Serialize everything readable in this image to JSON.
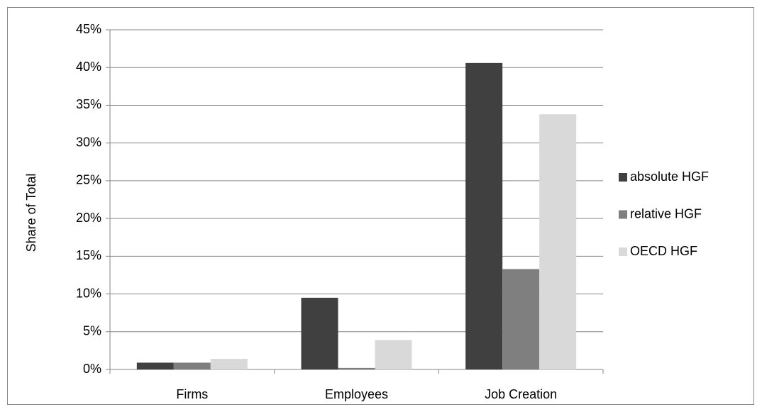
{
  "chart_data": {
    "type": "bar",
    "y_label": "Share of Total",
    "categories": [
      "Firms",
      "Employees",
      "Job Creation"
    ],
    "series": [
      {
        "name": "absolute HGF",
        "color": "#404040",
        "values": [
          0.9,
          9.5,
          40.6
        ]
      },
      {
        "name": "relative HGF",
        "color": "#7f7f7f",
        "values": [
          0.9,
          0.2,
          13.3
        ]
      },
      {
        "name": "OECD HGF",
        "color": "#d9d9d9",
        "values": [
          1.4,
          3.9,
          33.8
        ]
      }
    ],
    "ylim": [
      0,
      45
    ],
    "yticks": [
      {
        "value": 0,
        "label": "0%"
      },
      {
        "value": 5,
        "label": "5%"
      },
      {
        "value": 10,
        "label": "10%"
      },
      {
        "value": 15,
        "label": "15%"
      },
      {
        "value": 20,
        "label": "20%"
      },
      {
        "value": 25,
        "label": "25%"
      },
      {
        "value": 30,
        "label": "30%"
      },
      {
        "value": 35,
        "label": "35%"
      },
      {
        "value": 40,
        "label": "40%"
      },
      {
        "value": 45,
        "label": "45%"
      }
    ],
    "grid": true,
    "legend": "right"
  }
}
